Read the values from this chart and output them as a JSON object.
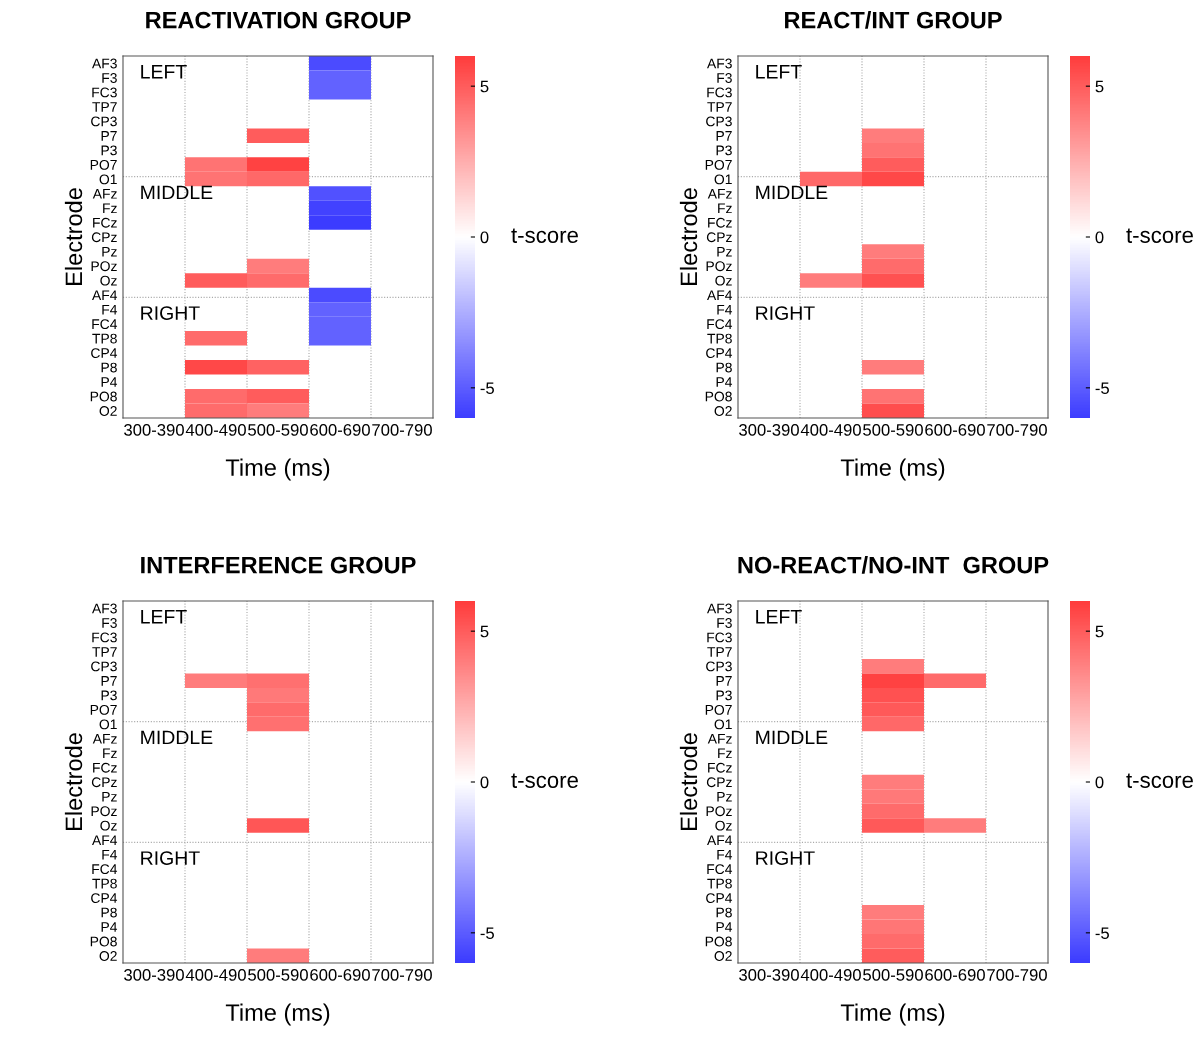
{
  "chart_data": [
    {
      "type": "heatmap",
      "title": "REACTIVATION GROUP",
      "xlabel": "Time (ms)",
      "ylabel": "Electrode",
      "clabel": "t-score",
      "categories": [
        "300-390",
        "400-490",
        "500-590",
        "600-690",
        "700-790"
      ],
      "y_categories": [
        "AF3",
        "F3",
        "FC3",
        "TP7",
        "CP3",
        "P7",
        "P3",
        "PO7",
        "O1",
        "AFz",
        "Fz",
        "FCz",
        "CPz",
        "Pz",
        "POz",
        "Oz",
        "AF4",
        "F4",
        "FC4",
        "TP8",
        "CP4",
        "P8",
        "P4",
        "PO8",
        "O2"
      ],
      "cells": [
        [
          null,
          null,
          null,
          -5.5,
          null
        ],
        [
          null,
          null,
          null,
          -4.8,
          null
        ],
        [
          null,
          null,
          null,
          -4.8,
          null
        ],
        [
          null,
          null,
          null,
          null,
          null
        ],
        [
          null,
          null,
          null,
          null,
          null
        ],
        [
          null,
          null,
          5.0,
          null,
          null
        ],
        [
          null,
          null,
          null,
          null,
          null
        ],
        [
          null,
          4.3,
          5.8,
          null,
          null
        ],
        [
          null,
          4.3,
          4.6,
          null,
          null
        ],
        [
          null,
          null,
          null,
          -5.3,
          null
        ],
        [
          null,
          null,
          null,
          -5.8,
          null
        ],
        [
          null,
          null,
          null,
          -6.0,
          null
        ],
        [
          null,
          null,
          null,
          null,
          null
        ],
        [
          null,
          null,
          null,
          null,
          null
        ],
        [
          null,
          null,
          4.0,
          null,
          null
        ],
        [
          null,
          5.0,
          4.5,
          null,
          null
        ],
        [
          null,
          null,
          null,
          -5.5,
          null
        ],
        [
          null,
          null,
          null,
          -4.8,
          null
        ],
        [
          null,
          null,
          null,
          -4.8,
          null
        ],
        [
          null,
          4.5,
          null,
          -4.8,
          null
        ],
        [
          null,
          null,
          null,
          null,
          null
        ],
        [
          null,
          5.6,
          4.8,
          null,
          null
        ],
        [
          null,
          null,
          null,
          null,
          null
        ],
        [
          null,
          4.5,
          5.0,
          null,
          null
        ],
        [
          null,
          4.5,
          4.0,
          null,
          null
        ]
      ],
      "clim": [
        -6,
        6
      ],
      "cticks": [
        5,
        0,
        -5
      ],
      "grid": true,
      "annotations": [
        "LEFT",
        "MIDDLE",
        "RIGHT"
      ]
    },
    {
      "type": "heatmap",
      "title": "REACT/INT GROUP",
      "xlabel": "Time (ms)",
      "ylabel": "Electrode",
      "clabel": "t-score",
      "categories": [
        "300-390",
        "400-490",
        "500-590",
        "600-690",
        "700-790"
      ],
      "y_categories": [
        "AF3",
        "F3",
        "FC3",
        "TP7",
        "CP3",
        "P7",
        "P3",
        "PO7",
        "O1",
        "AFz",
        "Fz",
        "FCz",
        "CPz",
        "Pz",
        "POz",
        "Oz",
        "AF4",
        "F4",
        "FC4",
        "TP8",
        "CP4",
        "P8",
        "P4",
        "PO8",
        "O2"
      ],
      "cells": [
        [
          null,
          null,
          null,
          null,
          null
        ],
        [
          null,
          null,
          null,
          null,
          null
        ],
        [
          null,
          null,
          null,
          null,
          null
        ],
        [
          null,
          null,
          null,
          null,
          null
        ],
        [
          null,
          null,
          null,
          null,
          null
        ],
        [
          null,
          null,
          4.0,
          null,
          null
        ],
        [
          null,
          null,
          4.3,
          null,
          null
        ],
        [
          null,
          null,
          5.0,
          null,
          null
        ],
        [
          null,
          4.6,
          5.6,
          null,
          null
        ],
        [
          null,
          null,
          null,
          null,
          null
        ],
        [
          null,
          null,
          null,
          null,
          null
        ],
        [
          null,
          null,
          null,
          null,
          null
        ],
        [
          null,
          null,
          null,
          null,
          null
        ],
        [
          null,
          null,
          4.0,
          null,
          null
        ],
        [
          null,
          null,
          4.5,
          null,
          null
        ],
        [
          null,
          4.0,
          5.3,
          null,
          null
        ],
        [
          null,
          null,
          null,
          null,
          null
        ],
        [
          null,
          null,
          null,
          null,
          null
        ],
        [
          null,
          null,
          null,
          null,
          null
        ],
        [
          null,
          null,
          null,
          null,
          null
        ],
        [
          null,
          null,
          null,
          null,
          null
        ],
        [
          null,
          null,
          4.0,
          null,
          null
        ],
        [
          null,
          null,
          null,
          null,
          null
        ],
        [
          null,
          null,
          4.3,
          null,
          null
        ],
        [
          null,
          null,
          5.4,
          null,
          null
        ]
      ],
      "clim": [
        -6,
        6
      ],
      "cticks": [
        5,
        0,
        -5
      ],
      "grid": true,
      "annotations": [
        "LEFT",
        "MIDDLE",
        "RIGHT"
      ]
    },
    {
      "type": "heatmap",
      "title": "INTERFERENCE GROUP",
      "xlabel": "Time (ms)",
      "ylabel": "Electrode",
      "clabel": "t-score",
      "categories": [
        "300-390",
        "400-490",
        "500-590",
        "600-690",
        "700-790"
      ],
      "y_categories": [
        "AF3",
        "F3",
        "FC3",
        "TP7",
        "CP3",
        "P7",
        "P3",
        "PO7",
        "O1",
        "AFz",
        "Fz",
        "FCz",
        "CPz",
        "Pz",
        "POz",
        "Oz",
        "AF4",
        "F4",
        "FC4",
        "TP8",
        "CP4",
        "P8",
        "P4",
        "PO8",
        "O2"
      ],
      "cells": [
        [
          null,
          null,
          null,
          null,
          null
        ],
        [
          null,
          null,
          null,
          null,
          null
        ],
        [
          null,
          null,
          null,
          null,
          null
        ],
        [
          null,
          null,
          null,
          null,
          null
        ],
        [
          null,
          null,
          null,
          null,
          null
        ],
        [
          null,
          4.0,
          4.4,
          null,
          null
        ],
        [
          null,
          null,
          4.1,
          null,
          null
        ],
        [
          null,
          null,
          4.5,
          null,
          null
        ],
        [
          null,
          null,
          4.4,
          null,
          null
        ],
        [
          null,
          null,
          null,
          null,
          null
        ],
        [
          null,
          null,
          null,
          null,
          null
        ],
        [
          null,
          null,
          null,
          null,
          null
        ],
        [
          null,
          null,
          null,
          null,
          null
        ],
        [
          null,
          null,
          null,
          null,
          null
        ],
        [
          null,
          null,
          null,
          null,
          null
        ],
        [
          null,
          null,
          5.2,
          null,
          null
        ],
        [
          null,
          null,
          null,
          null,
          null
        ],
        [
          null,
          null,
          null,
          null,
          null
        ],
        [
          null,
          null,
          null,
          null,
          null
        ],
        [
          null,
          null,
          null,
          null,
          null
        ],
        [
          null,
          null,
          null,
          null,
          null
        ],
        [
          null,
          null,
          null,
          null,
          null
        ],
        [
          null,
          null,
          null,
          null,
          null
        ],
        [
          null,
          null,
          null,
          null,
          null
        ],
        [
          null,
          null,
          4.0,
          null,
          null
        ]
      ],
      "clim": [
        -6,
        6
      ],
      "cticks": [
        5,
        0,
        -5
      ],
      "grid": true,
      "annotations": [
        "LEFT",
        "MIDDLE",
        "RIGHT"
      ]
    },
    {
      "type": "heatmap",
      "title": "NO-REACT/NO-INT  GROUP",
      "xlabel": "Time (ms)",
      "ylabel": "Electrode",
      "clabel": "t-score",
      "categories": [
        "300-390",
        "400-490",
        "500-590",
        "600-690",
        "700-790"
      ],
      "y_categories": [
        "AF3",
        "F3",
        "FC3",
        "TP7",
        "CP3",
        "P7",
        "P3",
        "PO7",
        "O1",
        "AFz",
        "Fz",
        "FCz",
        "CPz",
        "Pz",
        "POz",
        "Oz",
        "AF4",
        "F4",
        "FC4",
        "TP8",
        "CP4",
        "P8",
        "P4",
        "PO8",
        "O2"
      ],
      "cells": [
        [
          null,
          null,
          null,
          null,
          null
        ],
        [
          null,
          null,
          null,
          null,
          null
        ],
        [
          null,
          null,
          null,
          null,
          null
        ],
        [
          null,
          null,
          null,
          null,
          null
        ],
        [
          null,
          null,
          4.0,
          null,
          null
        ],
        [
          null,
          null,
          5.8,
          4.5,
          null
        ],
        [
          null,
          null,
          5.3,
          null,
          null
        ],
        [
          null,
          null,
          5.1,
          null,
          null
        ],
        [
          null,
          null,
          4.6,
          null,
          null
        ],
        [
          null,
          null,
          null,
          null,
          null
        ],
        [
          null,
          null,
          null,
          null,
          null
        ],
        [
          null,
          null,
          null,
          null,
          null
        ],
        [
          null,
          null,
          4.0,
          null,
          null
        ],
        [
          null,
          null,
          4.1,
          null,
          null
        ],
        [
          null,
          null,
          4.5,
          null,
          null
        ],
        [
          null,
          null,
          5.1,
          4.0,
          null
        ],
        [
          null,
          null,
          null,
          null,
          null
        ],
        [
          null,
          null,
          null,
          null,
          null
        ],
        [
          null,
          null,
          null,
          null,
          null
        ],
        [
          null,
          null,
          null,
          null,
          null
        ],
        [
          null,
          null,
          null,
          null,
          null
        ],
        [
          null,
          null,
          4.0,
          null,
          null
        ],
        [
          null,
          null,
          4.2,
          null,
          null
        ],
        [
          null,
          null,
          4.5,
          null,
          null
        ],
        [
          null,
          null,
          5.0,
          null,
          null
        ]
      ],
      "clim": [
        -6,
        6
      ],
      "cticks": [
        5,
        0,
        -5
      ],
      "grid": true,
      "annotations": [
        "LEFT",
        "MIDDLE",
        "RIGHT"
      ]
    }
  ]
}
